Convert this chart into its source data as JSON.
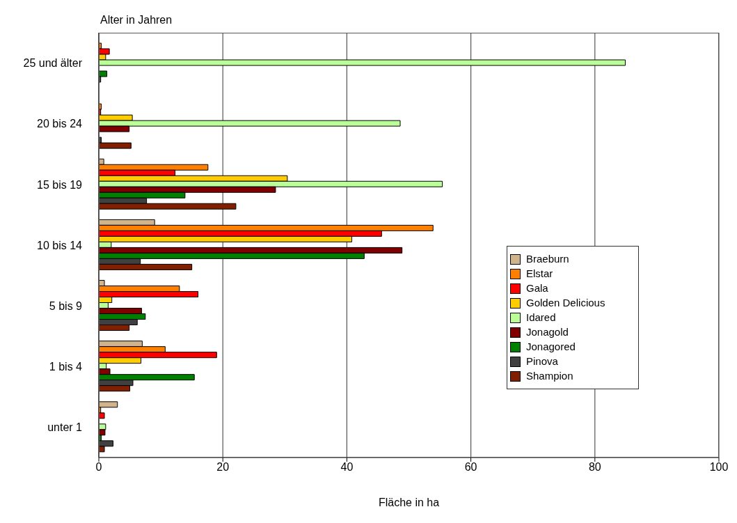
{
  "chart_data": {
    "type": "bar",
    "orientation": "horizontal",
    "ylabel": "Alter in Jahren",
    "xlabel": "Fläche in ha",
    "categories": [
      "25 und älter",
      "20 bis 24",
      "15 bis 19",
      "10 bis 14",
      "5 bis 9",
      "1 bis 4",
      "unter 1"
    ],
    "series": [
      {
        "name": "Braeburn",
        "color": "#d2b48c",
        "values": [
          null,
          null,
          0.8,
          9.0,
          0.9,
          7.0,
          3.0
        ]
      },
      {
        "name": "Elstar",
        "color": "#ff8000",
        "values": [
          0.4,
          0.4,
          17.6,
          53.9,
          13.0,
          10.7,
          0.3
        ]
      },
      {
        "name": "Gala",
        "color": "#ff0000",
        "values": [
          1.7,
          0.3,
          12.3,
          45.6,
          16.0,
          19.0,
          0.9
        ]
      },
      {
        "name": "Golden Delicious",
        "color": "#ffcc00",
        "values": [
          1.1,
          5.4,
          30.4,
          40.8,
          2.1,
          6.8,
          null
        ]
      },
      {
        "name": "Idared",
        "color": "#bbff99",
        "values": [
          84.9,
          48.6,
          55.4,
          2.0,
          1.5,
          1.2,
          1.1
        ]
      },
      {
        "name": "Jonagold",
        "color": "#800000",
        "values": [
          0,
          4.9,
          28.5,
          48.9,
          6.9,
          1.8,
          1.0
        ]
      },
      {
        "name": "Jonagored",
        "color": "#008000",
        "values": [
          1.3,
          0,
          13.9,
          42.8,
          7.5,
          15.4,
          0.4
        ]
      },
      {
        "name": "Pinova",
        "color": "#404040",
        "values": [
          0.3,
          0.4,
          7.7,
          6.7,
          6.2,
          5.5,
          2.3
        ]
      },
      {
        "name": "Shampion",
        "color": "#802000",
        "values": [
          null,
          5.2,
          22.1,
          15.0,
          4.9,
          5.0,
          0.9
        ]
      }
    ],
    "xlim": [
      0,
      100
    ],
    "xticks": [
      0,
      20,
      40,
      60,
      80,
      100
    ],
    "grid": "x",
    "legend": "right"
  }
}
